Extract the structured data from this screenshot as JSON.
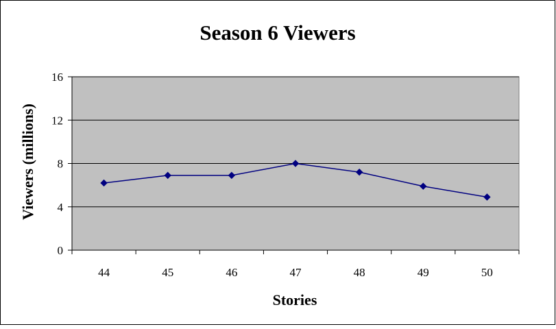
{
  "chart_data": {
    "type": "line",
    "title": "Season 6 Viewers",
    "xlabel": "Stories",
    "ylabel": "Viewers (millions)",
    "categories": [
      "44",
      "45",
      "46",
      "47",
      "48",
      "49",
      "50"
    ],
    "series": [
      {
        "values": [
          6.2,
          6.9,
          6.9,
          8.0,
          7.2,
          5.9,
          4.9
        ]
      }
    ],
    "ylim": [
      0,
      16
    ],
    "yticks": [
      "0",
      "4",
      "8",
      "12",
      "16"
    ],
    "grid": true,
    "legend": "none",
    "colors": {
      "plot_background": "#c0c0c0",
      "series_line": "#000080",
      "grid": "#000000",
      "border": "#808080"
    }
  }
}
